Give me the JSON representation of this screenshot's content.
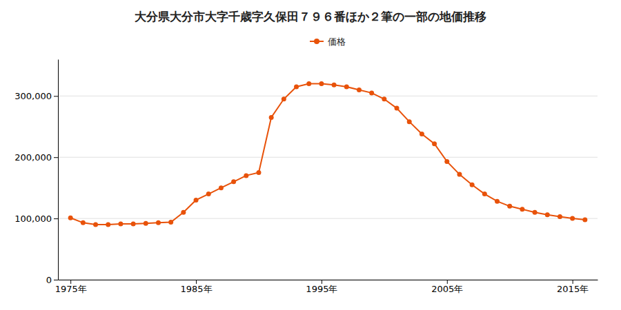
{
  "chart_data": {
    "type": "line",
    "title": "大分県大分市大字千歳字久保田７９６番ほか２筆の一部の地価推移",
    "x": [
      1975,
      1976,
      1977,
      1978,
      1979,
      1980,
      1981,
      1982,
      1983,
      1984,
      1985,
      1986,
      1987,
      1988,
      1989,
      1990,
      1991,
      1992,
      1993,
      1994,
      1995,
      1996,
      1997,
      1998,
      1999,
      2000,
      2001,
      2002,
      2003,
      2004,
      2005,
      2006,
      2007,
      2008,
      2009,
      2010,
      2011,
      2012,
      2013,
      2014,
      2015,
      2016
    ],
    "series": [
      {
        "name": "価格",
        "color": "#E8520A",
        "marker": "circle",
        "values": [
          101000,
          93000,
          90000,
          90000,
          91000,
          91000,
          92000,
          93000,
          94000,
          110000,
          130000,
          140000,
          150000,
          160000,
          170000,
          175000,
          265000,
          295000,
          315000,
          320000,
          320000,
          318000,
          315000,
          310000,
          305000,
          295000,
          280000,
          258000,
          238000,
          222000,
          193000,
          172000,
          155000,
          140000,
          128000,
          120000,
          115000,
          110000,
          106000,
          103000,
          100000,
          98000
        ]
      }
    ],
    "xlim": [
      1974,
      2017
    ],
    "xticks": [
      {
        "value": 1975,
        "label": "1975年"
      },
      {
        "value": 1985,
        "label": "1985年"
      },
      {
        "value": 1995,
        "label": "1995年"
      },
      {
        "value": 2005,
        "label": "2005年"
      },
      {
        "value": 2015,
        "label": "2015年"
      }
    ],
    "ylim": [
      0,
      360000
    ],
    "yticks": [
      0,
      {
        "value": 100000,
        "label": "100,000"
      },
      {
        "value": 200000,
        "label": "200,000"
      },
      {
        "value": 300000,
        "label": "300,000"
      }
    ],
    "grid": true,
    "legend": "top"
  }
}
